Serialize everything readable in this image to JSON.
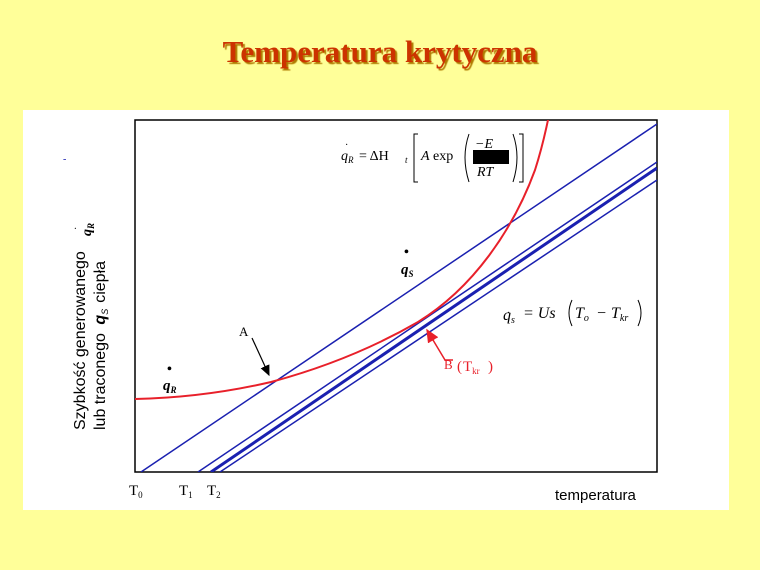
{
  "slide": {
    "title": "Temperatura krytyczna"
  },
  "diagram": {
    "y_axis_label_line1": "Szybkość generowanego",
    "y_axis_label_line2_a": "lub traconego",
    "y_axis_label_line2_b": "ciepła",
    "y_axis_symbol_qR": "q",
    "y_axis_symbol_qR_sub": "R",
    "y_axis_symbol_qS": "q",
    "y_axis_symbol_qS_sub": "S",
    "x_axis_label": "temperatura",
    "tick_T0": "T",
    "tick_T0_sub": "0",
    "tick_T1": "T",
    "tick_T1_sub": "1",
    "tick_T2": "T",
    "tick_T2_sub": "2",
    "label_A": "A",
    "label_B": "B",
    "label_Tkr": "T",
    "label_Tkr_sub": "kr",
    "curve_label_qR": "q",
    "curve_label_qR_sub": "R",
    "line_label_qS": "q",
    "line_label_qS_sub": "S",
    "formula_qR": {
      "lhs": "q",
      "lhs_sub": "R",
      "eq": "= ΔH",
      "dh_sub": "t",
      "factor": "A",
      "exp": "exp",
      "numerator": "−E",
      "denominator": "RT"
    },
    "formula_qs": {
      "lhs": "q",
      "lhs_sub": "s",
      "rhs": "= Us",
      "T_o": "T",
      "T_o_sub": "o",
      "minus": "−",
      "T_kr": "T",
      "T_kr_sub": "kr"
    },
    "colors": {
      "heat_generation_curve": "#e8202a",
      "heat_loss_lines": "#1a20b0",
      "tangent_point_arrow": "#e8202a",
      "background": "#ffff99",
      "title": "#cc3300"
    }
  }
}
